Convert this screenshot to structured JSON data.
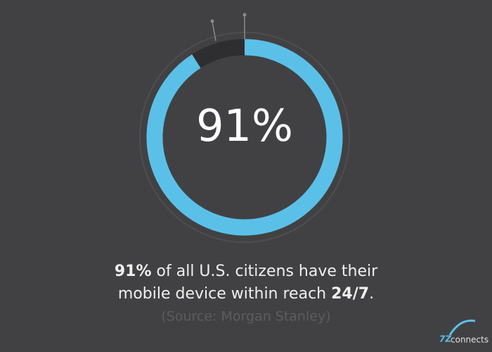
{
  "chart_data": {
    "type": "donut",
    "values": [
      91,
      9
    ],
    "value_labels": [
      "91%",
      null
    ],
    "colors": [
      "#5bc0e8",
      "#2e2e30"
    ],
    "caption_lines": [
      [
        {
          "text": "91%",
          "bold": true
        },
        {
          "text": " of all U.S. citizens have their",
          "bold": false
        }
      ],
      [
        {
          "text": "mobile device within reach ",
          "bold": false
        },
        {
          "text": "24/7",
          "bold": true
        },
        {
          "text": ".",
          "bold": false
        }
      ]
    ],
    "source": "(Source: Morgan Stanley)",
    "logo_mark": "7Z",
    "logo_text": "connects"
  }
}
